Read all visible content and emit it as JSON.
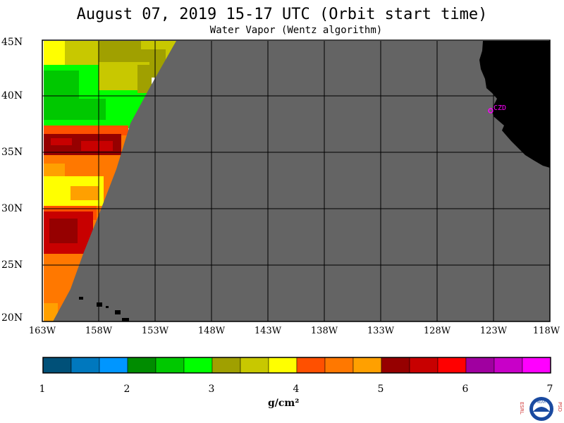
{
  "title": "August 07, 2019  15-17 UTC  (Orbit start time)",
  "subtitle": "Water Vapor (Wentz algorithm)",
  "map": {
    "lat_labels": [
      "45N",
      "40N",
      "35N",
      "30N",
      "25N",
      "20N"
    ],
    "lon_labels": [
      "163W",
      "158W",
      "153W",
      "148W",
      "143W",
      "138W",
      "133W",
      "128W",
      "123W",
      "118W"
    ],
    "station_label": "CZD",
    "no_data_color": "#646464",
    "land_color": "#000000",
    "marker_color": "#ff00ff"
  },
  "colorbar": {
    "colors": [
      "#005078",
      "#0078be",
      "#0096ff",
      "#008c00",
      "#00c800",
      "#00ff00",
      "#a0a000",
      "#c8c800",
      "#ffff00",
      "#ff5000",
      "#ff7800",
      "#ffa000",
      "#960000",
      "#c80000",
      "#ff0000",
      "#a000a0",
      "#c800c8",
      "#ff00ff"
    ],
    "ticks": [
      "1",
      "2",
      "3",
      "4",
      "5",
      "6",
      "7"
    ],
    "units": "g/cm²",
    "range": [
      1,
      7
    ]
  },
  "logo": {
    "left_letters": "ESRL",
    "right_letters": "PSD",
    "center_text": "NOAA"
  }
}
